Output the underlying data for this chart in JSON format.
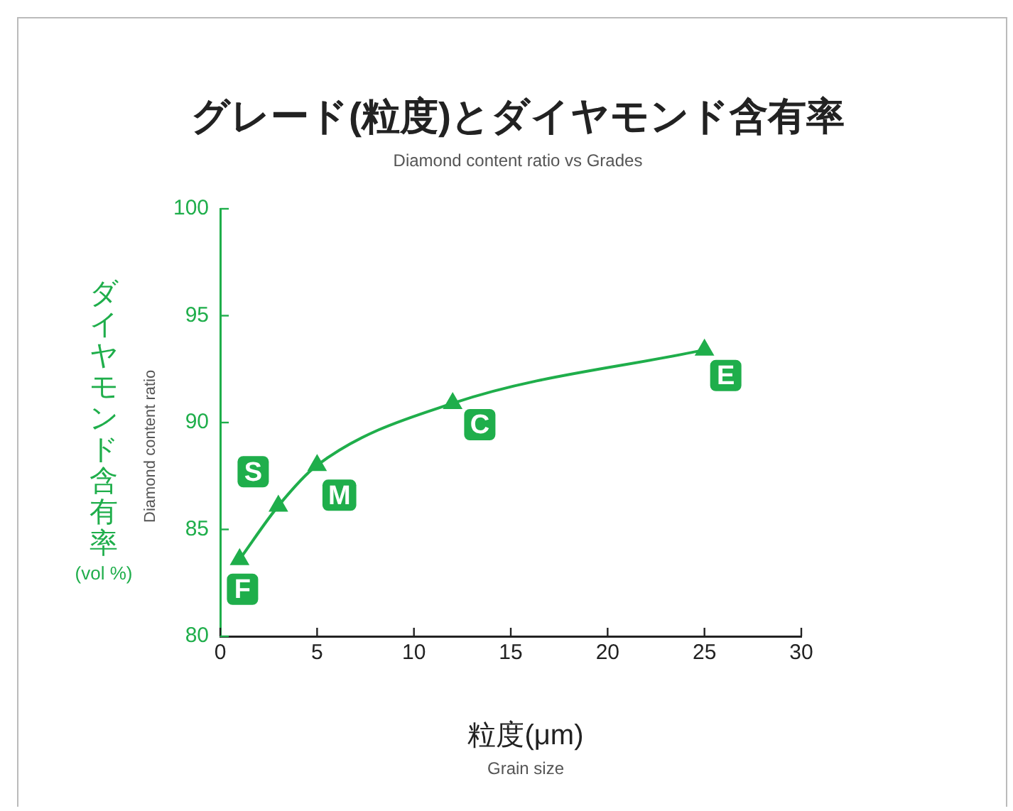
{
  "chart_data": {
    "type": "line",
    "title": "グレード(粒度)とダイヤモンド含有率",
    "subtitle": "Diamond content ratio vs Grades",
    "xlabel": "粒度(μm)",
    "ylabel": "ダイヤモンド含有率(vol %)",
    "x": [
      1,
      3,
      5,
      12,
      25
    ],
    "series": [
      {
        "color": "#1fae4b",
        "values": [
          83.6,
          86.1,
          88.0,
          90.9,
          93.4
        ]
      }
    ],
    "marker": "triangle",
    "grid": false,
    "legend": false,
    "xlim": [
      0,
      30
    ],
    "xticks": [
      0,
      5,
      10,
      15,
      20,
      25,
      30
    ],
    "ylim": [
      80,
      100
    ],
    "yticks": [
      80,
      85,
      90,
      95,
      100
    ],
    "annotations": [
      {
        "text": "F",
        "x": 1.15,
        "y": 82.2
      },
      {
        "text": "S",
        "x": 1.7,
        "y": 87.7
      },
      {
        "text": "M",
        "x": 6.15,
        "y": 86.6
      },
      {
        "text": "C",
        "x": 13.4,
        "y": 89.9
      },
      {
        "text": "E",
        "x": 26.1,
        "y": 92.2
      },
      "Diamond content ratio",
      "Grain size"
    ]
  }
}
